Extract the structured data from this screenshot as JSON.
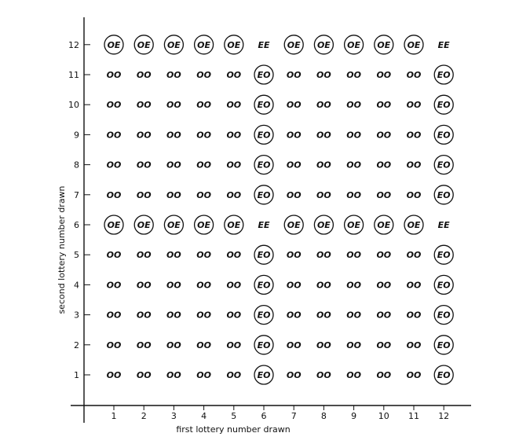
{
  "chart_data": {
    "type": "table",
    "xlabel": "first lottery number drawn",
    "ylabel": "second lottery number drawn",
    "x_ticks": [
      "1",
      "2",
      "3",
      "4",
      "5",
      "6",
      "7",
      "8",
      "9",
      "10",
      "11",
      "12"
    ],
    "y_ticks": [
      "1",
      "2",
      "3",
      "4",
      "5",
      "6",
      "7",
      "8",
      "9",
      "10",
      "11",
      "12"
    ],
    "rows": [
      {
        "y": "12",
        "cells": [
          "OE",
          "OE",
          "OE",
          "OE",
          "OE",
          "EE",
          "OE",
          "OE",
          "OE",
          "OE",
          "OE",
          "EE"
        ]
      },
      {
        "y": "11",
        "cells": [
          "OO",
          "OO",
          "OO",
          "OO",
          "OO",
          "EO",
          "OO",
          "OO",
          "OO",
          "OO",
          "OO",
          "EO"
        ]
      },
      {
        "y": "10",
        "cells": [
          "OO",
          "OO",
          "OO",
          "OO",
          "OO",
          "EO",
          "OO",
          "OO",
          "OO",
          "OO",
          "OO",
          "EO"
        ]
      },
      {
        "y": "9",
        "cells": [
          "OO",
          "OO",
          "OO",
          "OO",
          "OO",
          "EO",
          "OO",
          "OO",
          "OO",
          "OO",
          "OO",
          "EO"
        ]
      },
      {
        "y": "8",
        "cells": [
          "OO",
          "OO",
          "OO",
          "OO",
          "OO",
          "EO",
          "OO",
          "OO",
          "OO",
          "OO",
          "OO",
          "EO"
        ]
      },
      {
        "y": "7",
        "cells": [
          "OO",
          "OO",
          "OO",
          "OO",
          "OO",
          "EO",
          "OO",
          "OO",
          "OO",
          "OO",
          "OO",
          "EO"
        ]
      },
      {
        "y": "6",
        "cells": [
          "OE",
          "OE",
          "OE",
          "OE",
          "OE",
          "EE",
          "OE",
          "OE",
          "OE",
          "OE",
          "OE",
          "EE"
        ]
      },
      {
        "y": "5",
        "cells": [
          "OO",
          "OO",
          "OO",
          "OO",
          "OO",
          "EO",
          "OO",
          "OO",
          "OO",
          "OO",
          "OO",
          "EO"
        ]
      },
      {
        "y": "4",
        "cells": [
          "OO",
          "OO",
          "OO",
          "OO",
          "OO",
          "EO",
          "OO",
          "OO",
          "OO",
          "OO",
          "OO",
          "EO"
        ]
      },
      {
        "y": "3",
        "cells": [
          "OO",
          "OO",
          "OO",
          "OO",
          "OO",
          "EO",
          "OO",
          "OO",
          "OO",
          "OO",
          "OO",
          "EO"
        ]
      },
      {
        "y": "2",
        "cells": [
          "OO",
          "OO",
          "OO",
          "OO",
          "OO",
          "EO",
          "OO",
          "OO",
          "OO",
          "OO",
          "OO",
          "EO"
        ]
      },
      {
        "y": "1",
        "cells": [
          "OO",
          "OO",
          "OO",
          "OO",
          "OO",
          "EO",
          "OO",
          "OO",
          "OO",
          "OO",
          "OO",
          "EO"
        ]
      }
    ],
    "circled_outcomes": [
      "OE",
      "EO"
    ]
  }
}
